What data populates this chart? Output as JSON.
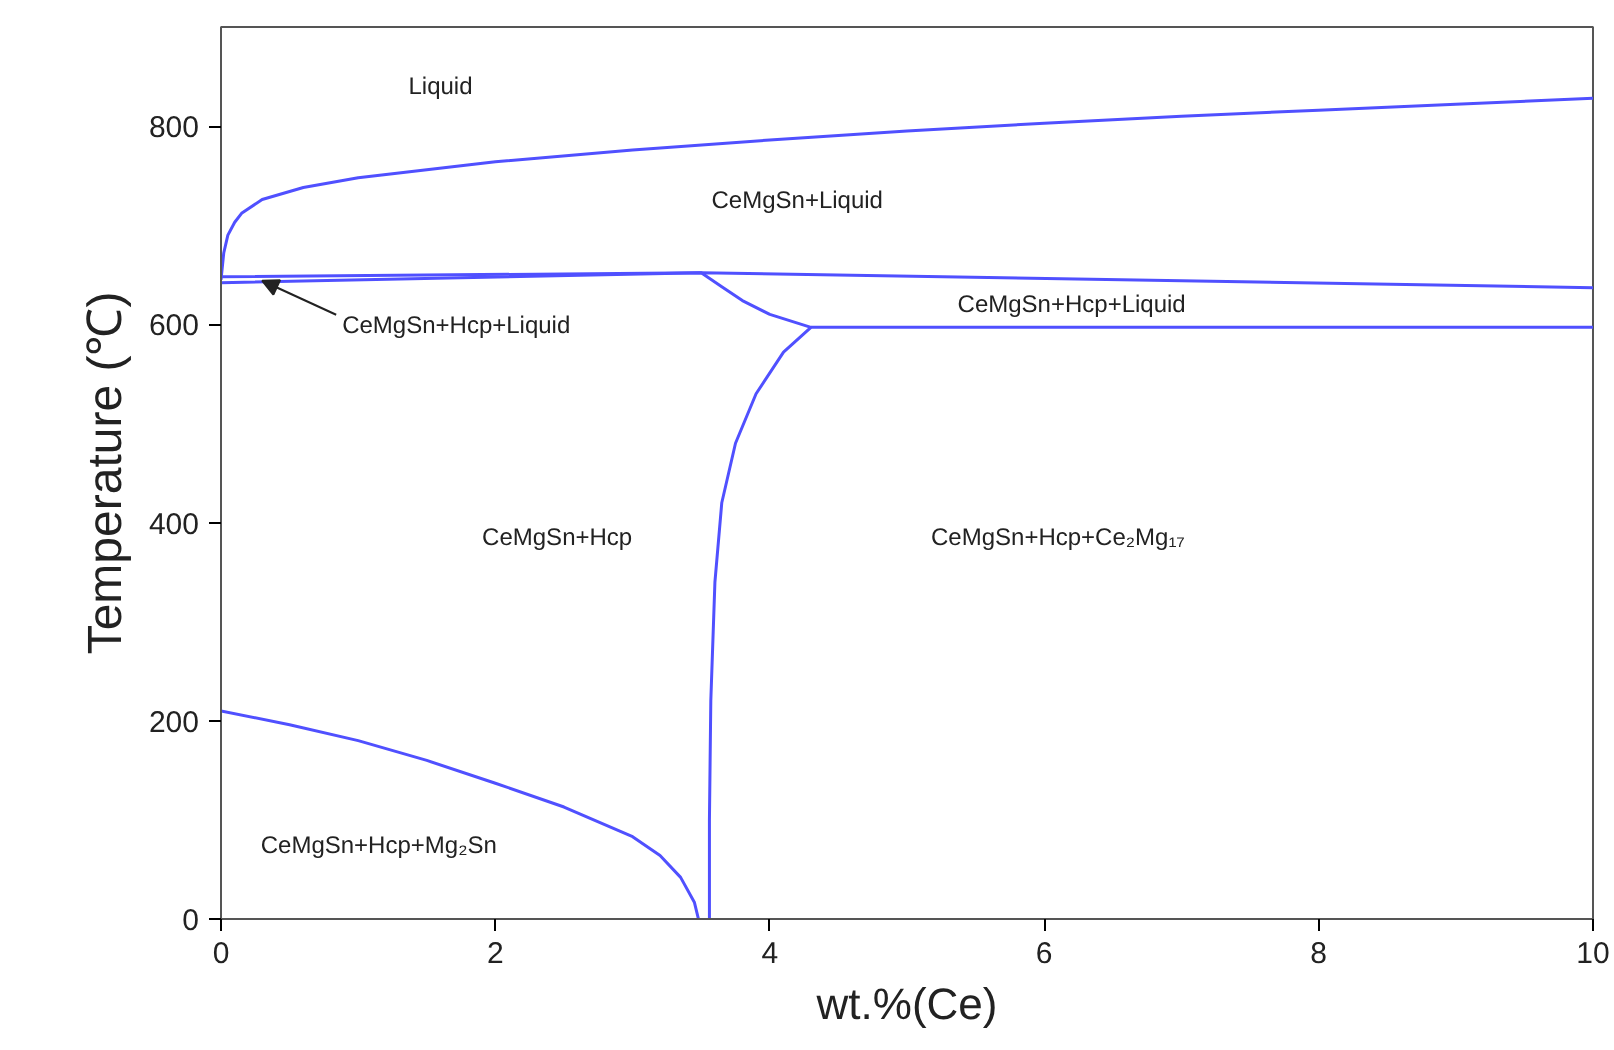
{
  "chart_data": {
    "type": "line",
    "xlabel": "wt.%(Ce)",
    "ylabel": "Temperature (℃)",
    "xlim": [
      0,
      10
    ],
    "ylim": [
      0,
      900
    ],
    "xticks": [
      0,
      2,
      4,
      6,
      8,
      10
    ],
    "yticks": [
      0,
      200,
      400,
      600,
      800
    ],
    "grid": false,
    "marker": "none",
    "line_style": "solid",
    "series": [
      {
        "color": "#5050ff",
        "x": [
          0,
          0.02,
          0.05,
          0.1,
          0.15,
          0.3,
          0.6,
          1,
          2,
          3,
          4,
          5,
          6,
          7,
          8,
          9,
          10
        ],
        "values": [
          645,
          672,
          690,
          703,
          712,
          726,
          738,
          748,
          764,
          776,
          786,
          795,
          803,
          810,
          816,
          822,
          828
        ]
      },
      {
        "color": "#5050ff",
        "x": [
          0,
          3.5,
          10
        ],
        "values": [
          648,
          652,
          637
        ]
      },
      {
        "color": "#5050ff",
        "x": [
          0,
          3.5,
          3.65,
          3.8,
          4.0,
          4.3,
          10
        ],
        "values": [
          642,
          652,
          638,
          624,
          610,
          597,
          597
        ]
      },
      {
        "color": "#5050ff",
        "x": [
          4.3,
          4.1,
          3.9,
          3.75,
          3.65,
          3.6,
          3.57,
          3.56,
          3.56
        ],
        "values": [
          597,
          572,
          530,
          480,
          420,
          340,
          220,
          100,
          0
        ]
      },
      {
        "color": "#5050ff",
        "x": [
          0,
          0.5,
          1,
          1.5,
          2,
          2.5,
          3,
          3.2,
          3.35,
          3.45,
          3.48
        ],
        "values": [
          210,
          196,
          180,
          160,
          137,
          113,
          83,
          64,
          42,
          17,
          0
        ]
      }
    ],
    "annotations": [
      "Liquid",
      "CeMgSn+Liquid",
      {
        "text": "CeMgSn+Hcp+Liquid",
        "x": 0.3,
        "y": 644
      },
      "CeMgSn+Hcp+Liquid",
      "CeMgSn+Hcp",
      "CeMgSn+Hcp+Ce₂Mg₁₇",
      "CeMgSn+Hcp+Mg₂Sn"
    ]
  }
}
